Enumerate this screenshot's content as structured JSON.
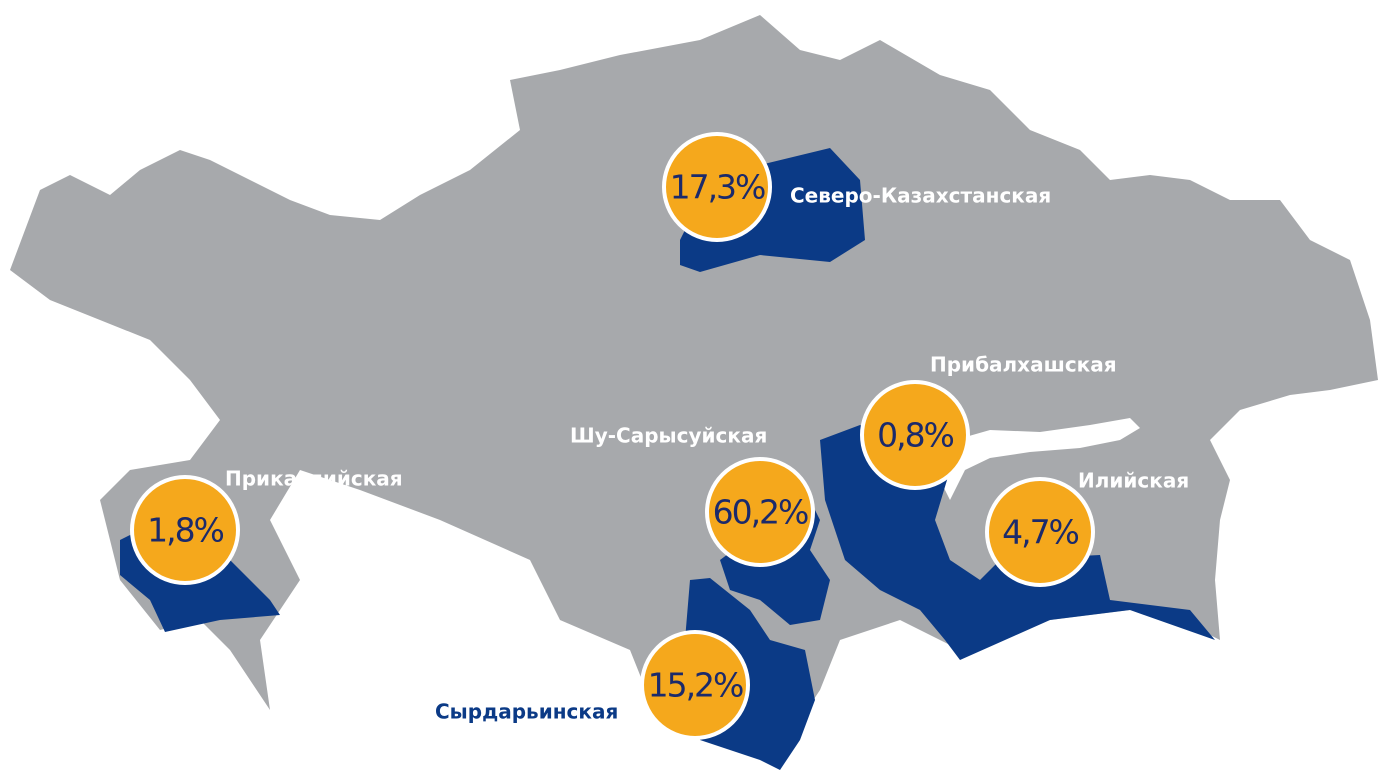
{
  "regions": [
    {
      "name": "Северо-Казахстанская",
      "label": "17,3%"
    },
    {
      "name": "Прикаспийская",
      "label": "1,8%"
    },
    {
      "name": "Шу-Сарысуйская",
      "label": "60,2%"
    },
    {
      "name": "Прибалхашская",
      "label": "0,8%"
    },
    {
      "name": "Илийская",
      "label": "4,7%"
    },
    {
      "name": "Сырдарьинская",
      "label": "15,2%"
    }
  ]
}
